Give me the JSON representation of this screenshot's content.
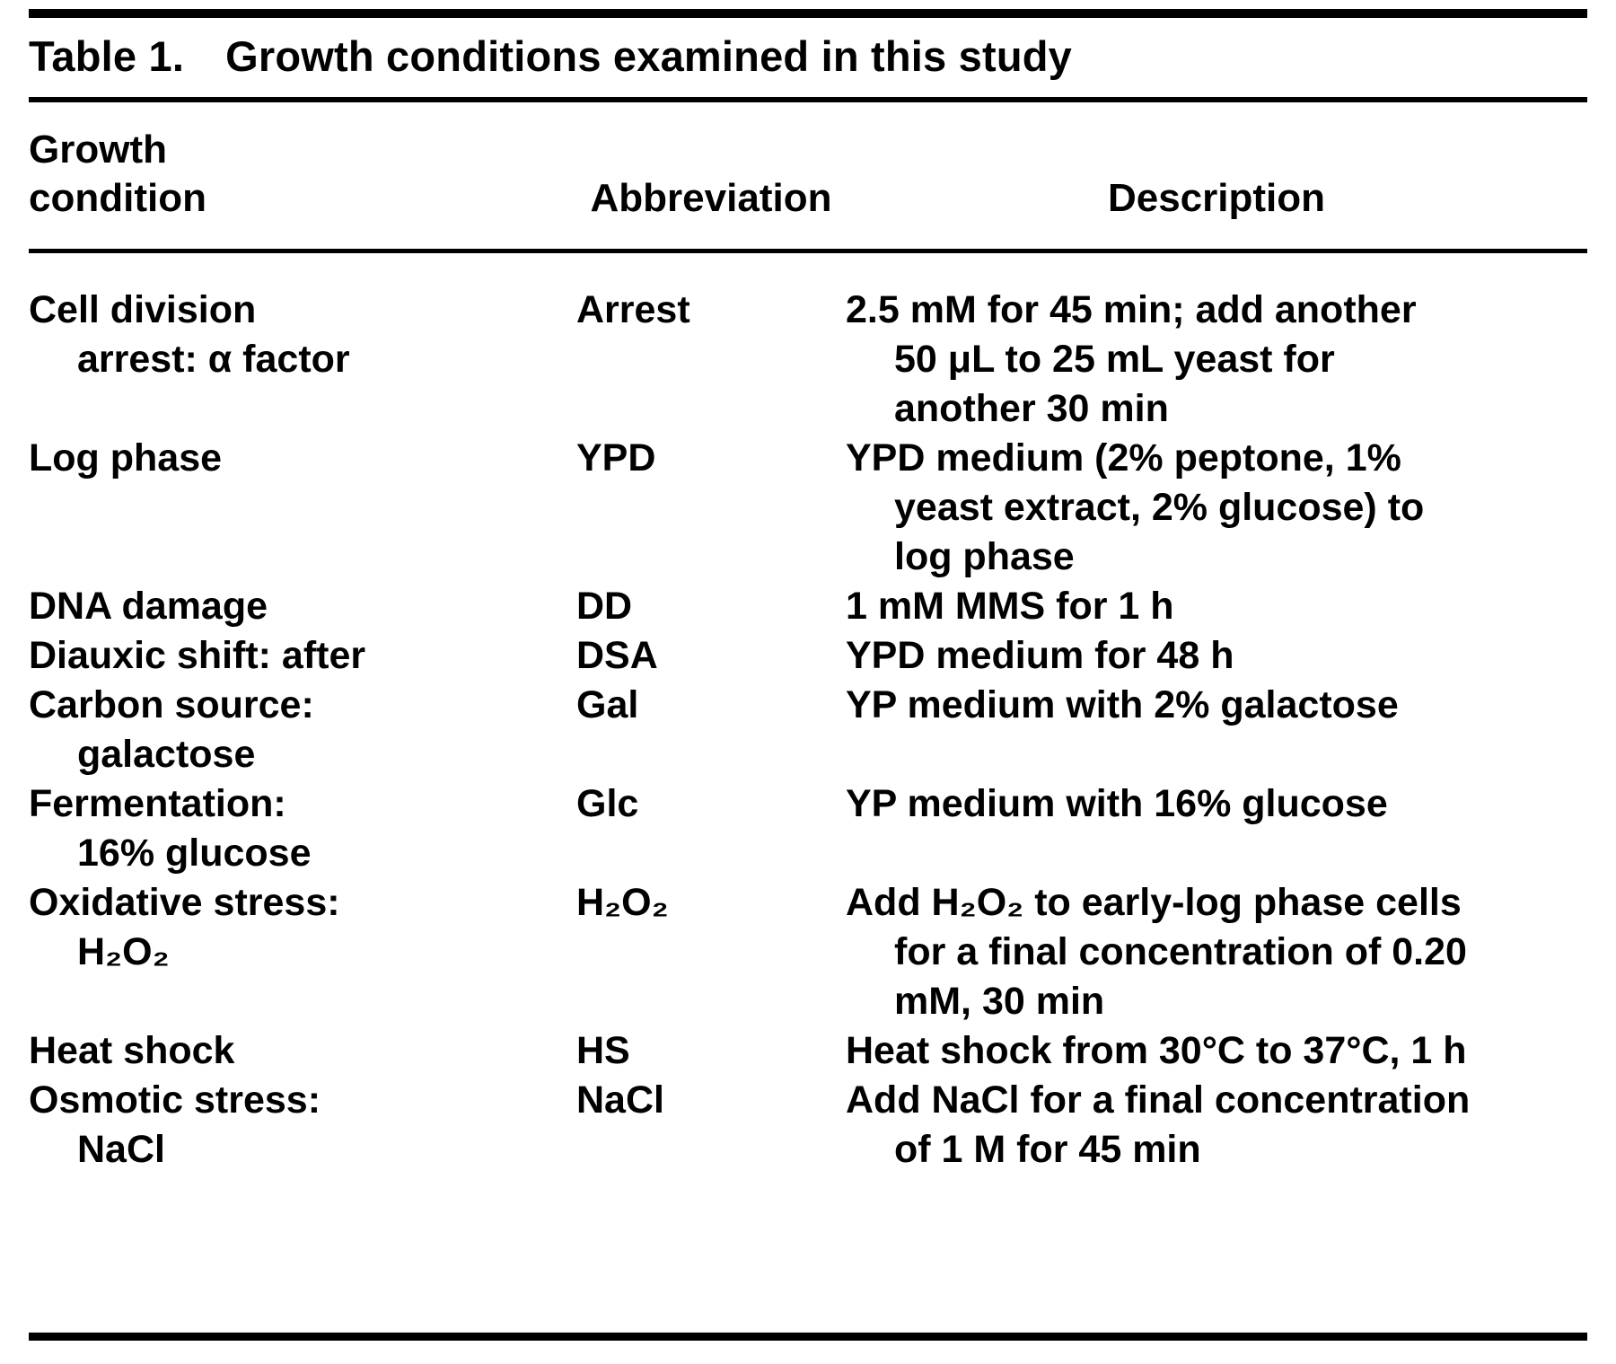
{
  "colors": {
    "text": "#000000",
    "background": "#ffffff",
    "rule": "#000000"
  },
  "table": {
    "label": "Table 1.",
    "title": "Growth conditions examined in this study",
    "headers": [
      "Growth\ncondition",
      "Abbreviation",
      "Description"
    ],
    "rows": [
      {
        "condition": "Cell division\narrest: α factor",
        "abbreviation": "Arrest",
        "description": "2.5 mM for 45 min; add another\n50 μL to 25 mL yeast for\nanother 30 min"
      },
      {
        "condition": "Log phase",
        "abbreviation": "YPD",
        "description": "YPD medium (2% peptone, 1%\nyeast extract, 2% glucose) to\nlog phase"
      },
      {
        "condition": "DNA damage",
        "abbreviation": "DD",
        "description": "1 mM MMS for 1 h"
      },
      {
        "condition": "Diauxic shift: after",
        "abbreviation": "DSA",
        "description": "YPD medium for 48 h"
      },
      {
        "condition": "Carbon source:\ngalactose",
        "abbreviation": "Gal",
        "description": "YP medium with 2% galactose"
      },
      {
        "condition": "Fermentation:\n16% glucose",
        "abbreviation": "Glc",
        "description": "YP medium with 16% glucose"
      },
      {
        "condition": "Oxidative stress:\nH₂O₂",
        "abbreviation": "H₂O₂",
        "description": "Add H₂O₂ to early-log phase cells\nfor a final concentration of 0.20\nmM, 30 min"
      },
      {
        "condition": "Heat shock",
        "abbreviation": "HS",
        "description": "Heat shock from 30°C to 37°C, 1 h"
      },
      {
        "condition": "Osmotic stress:\nNaCl",
        "abbreviation": "NaCl",
        "description": "Add NaCl for a final concentration\nof 1 M for 45 min"
      }
    ]
  }
}
